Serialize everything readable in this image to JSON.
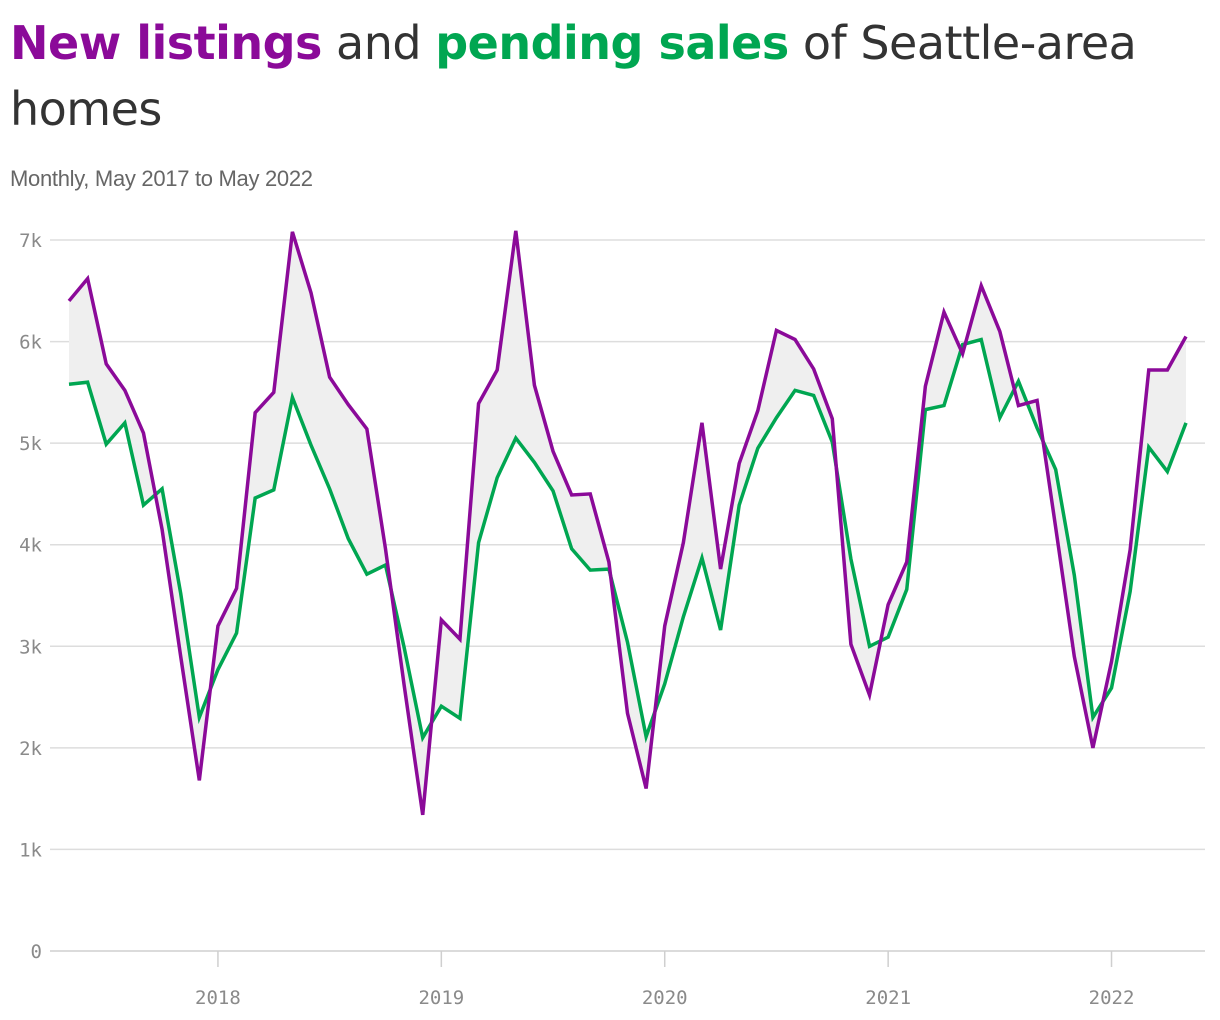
{
  "title": {
    "part1": "New listings",
    "part2": " and ",
    "part3": "pending sales",
    "part4": " of Seattle-area homes"
  },
  "subtitle": "Monthly, May 2017 to May 2022",
  "colors": {
    "new_listings": "#8b0a99",
    "pending_sales": "#00a651",
    "gap_fill": "#efefef",
    "grid": "#dddddd",
    "text": "#333333",
    "tick": "#8a8a8a"
  },
  "chart_data": {
    "type": "line",
    "x_start": "2017-05",
    "x_end": "2022-05",
    "x_ticks": [
      "2018",
      "2019",
      "2020",
      "2021",
      "2022"
    ],
    "y_ticks": [
      "0",
      "1k",
      "2k",
      "3k",
      "4k",
      "5k",
      "6k",
      "7k"
    ],
    "ylim": [
      0,
      7000
    ],
    "grid": true,
    "gap_shaded": true,
    "series": [
      {
        "name": "New listings",
        "color": "#8b0a99",
        "values": [
          6400,
          6620,
          5780,
          5520,
          5100,
          4150,
          2900,
          1680,
          3200,
          3570,
          5300,
          5500,
          7080,
          6480,
          5650,
          5380,
          5140,
          3960,
          2620,
          1340,
          3260,
          3070,
          5390,
          5720,
          7090,
          5570,
          4920,
          4490,
          4500,
          3830,
          2340,
          1600,
          3200,
          4020,
          5200,
          3760,
          4800,
          5320,
          6110,
          6020,
          5730,
          5240,
          3020,
          2520,
          3410,
          3830,
          5560,
          6290,
          5880,
          6550,
          6100,
          5370,
          5420,
          4170,
          2900,
          2000,
          2850,
          3950,
          5720,
          5720,
          6050
        ]
      },
      {
        "name": "Pending sales",
        "color": "#00a651",
        "values": [
          5580,
          5600,
          4990,
          5200,
          4390,
          4550,
          3520,
          2300,
          2770,
          3130,
          4460,
          4540,
          5450,
          4980,
          4550,
          4060,
          3710,
          3800,
          2990,
          2100,
          2410,
          2290,
          4020,
          4660,
          5050,
          4810,
          4530,
          3960,
          3750,
          3760,
          3040,
          2110,
          2630,
          3290,
          3870,
          3160,
          4390,
          4950,
          5250,
          5520,
          5470,
          5010,
          3860,
          3000,
          3090,
          3560,
          5330,
          5370,
          5970,
          6020,
          5250,
          5610,
          5150,
          4740,
          3700,
          2300,
          2590,
          3540,
          4960,
          4720,
          5200
        ]
      }
    ]
  }
}
